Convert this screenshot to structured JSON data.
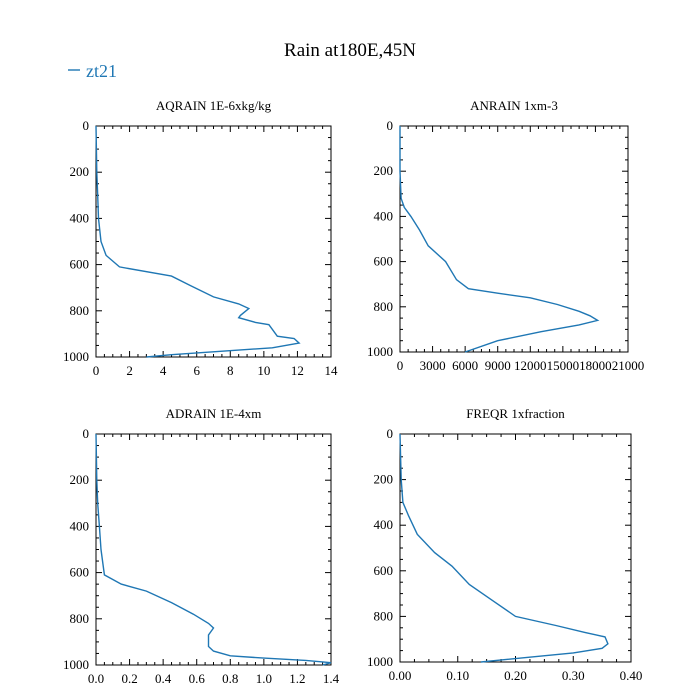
{
  "figure": {
    "title": "Rain at180E,45N",
    "legend_label": "zt21",
    "series_color": "#1f77b4"
  },
  "chart_data": [
    {
      "type": "line",
      "title": "AQRAIN  1E-6xkg/kg",
      "xlim": [
        0,
        14
      ],
      "ylim": [
        1000,
        0
      ],
      "xticks": [
        "0",
        "2",
        "4",
        "6",
        "8",
        "10",
        "12",
        "14"
      ],
      "yticks": [
        "0",
        "200",
        "400",
        "600",
        "800",
        "1000"
      ],
      "series": [
        {
          "x": [
            0,
            0.05,
            0.1,
            0.15,
            0.3,
            0.6,
            1.4,
            4.5,
            5.6,
            7.0,
            8.5,
            9.1,
            8.6,
            8.5,
            9.5,
            10.3,
            10.5,
            10.8,
            11.8,
            12.1,
            10.5,
            4.5,
            3.0
          ],
          "y": [
            0,
            200,
            300,
            400,
            500,
            560,
            610,
            650,
            690,
            740,
            770,
            790,
            820,
            830,
            850,
            860,
            880,
            910,
            920,
            940,
            960,
            990,
            1000
          ]
        }
      ]
    },
    {
      "type": "line",
      "title": "ANRAIN  1xm-3",
      "xlim": [
        0,
        21000
      ],
      "ylim": [
        1000,
        0
      ],
      "xticks": [
        "0",
        "3000",
        "6000",
        "9000",
        "12000",
        "15000",
        "18000",
        "21000"
      ],
      "yticks": [
        "0",
        "200",
        "400",
        "600",
        "800",
        "1000"
      ],
      "series": [
        {
          "x": [
            0,
            0,
            100,
            400,
            1000,
            1800,
            2600,
            4200,
            5200,
            6300,
            9000,
            12000,
            14500,
            16500,
            17500,
            18200,
            16500,
            13000,
            9000,
            6000
          ],
          "y": [
            0,
            200,
            320,
            360,
            400,
            460,
            530,
            600,
            680,
            720,
            740,
            760,
            790,
            820,
            840,
            860,
            880,
            910,
            950,
            1000
          ]
        }
      ]
    },
    {
      "type": "line",
      "title": "ADRAIN  1E-4xm",
      "xlim": [
        0,
        1.4
      ],
      "ylim": [
        1000,
        0
      ],
      "xticks": [
        "0.0",
        "0.2",
        "0.4",
        "0.6",
        "0.8",
        "1.0",
        "1.2",
        "1.4"
      ],
      "yticks": [
        "0",
        "200",
        "400",
        "600",
        "800",
        "1000"
      ],
      "series": [
        {
          "x": [
            0,
            0.005,
            0.01,
            0.02,
            0.03,
            0.05,
            0.15,
            0.3,
            0.45,
            0.58,
            0.67,
            0.7,
            0.67,
            0.67,
            0.7,
            0.8,
            1.0,
            1.25,
            1.4,
            1.35
          ],
          "y": [
            0,
            200,
            300,
            400,
            500,
            610,
            650,
            680,
            730,
            780,
            820,
            840,
            870,
            920,
            940,
            960,
            970,
            980,
            990,
            1000
          ]
        }
      ]
    },
    {
      "type": "line",
      "title": "FREQR  1xfraction",
      "xlim": [
        0,
        0.4
      ],
      "ylim": [
        1000,
        0
      ],
      "xticks": [
        "0.00",
        "0.10",
        "0.20",
        "0.30",
        "0.40"
      ],
      "yticks": [
        "0",
        "200",
        "400",
        "600",
        "800",
        "1000"
      ],
      "series": [
        {
          "x": [
            0,
            0.002,
            0.005,
            0.015,
            0.03,
            0.06,
            0.09,
            0.12,
            0.16,
            0.2,
            0.27,
            0.32,
            0.355,
            0.36,
            0.35,
            0.3,
            0.22,
            0.14
          ],
          "y": [
            0,
            200,
            300,
            360,
            440,
            520,
            580,
            660,
            730,
            800,
            840,
            870,
            890,
            920,
            940,
            960,
            980,
            1000
          ]
        }
      ]
    }
  ]
}
